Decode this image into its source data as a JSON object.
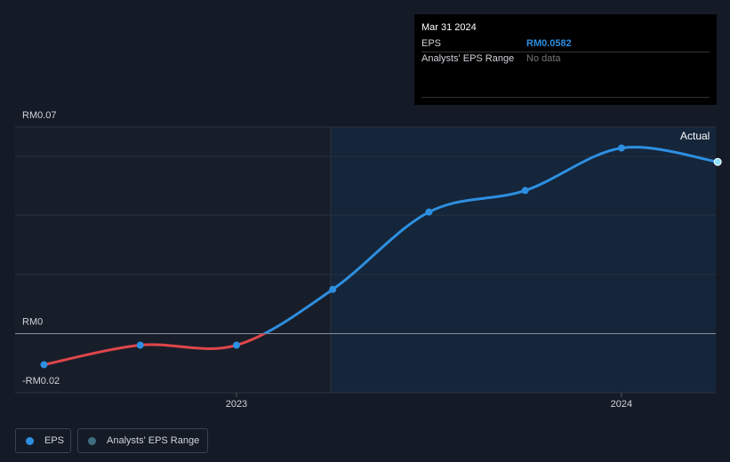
{
  "chart_data": {
    "type": "line",
    "x": [
      2022.5,
      2022.75,
      2023.0,
      2023.25,
      2023.5,
      2023.75,
      2024.0,
      2024.25
    ],
    "series": [
      {
        "name": "EPS",
        "color": "#2d8fe0",
        "negative_color": "#e0464a",
        "values": [
          -0.0105,
          -0.0039,
          -0.0039,
          0.015,
          0.0412,
          0.0485,
          0.0629,
          0.0582
        ]
      }
    ],
    "range_legend": "Analysts' EPS Range",
    "xlim": [
      2022.425,
      2024.245
    ],
    "xticks": [
      2023,
      2024
    ],
    "ylim": [
      -0.02,
      0.07
    ],
    "yticks": [
      {
        "value": 0.07,
        "label": "RM0.07"
      },
      {
        "value": 0,
        "label": "RM0"
      },
      {
        "value": -0.02,
        "label": "-RM0.02"
      }
    ],
    "annotation": "Actual",
    "tooltip": {
      "date": "Mar 31 2024",
      "rows": [
        [
          "EPS",
          "RM0.0582"
        ],
        [
          "Analysts' EPS Range",
          "No data"
        ]
      ]
    }
  }
}
